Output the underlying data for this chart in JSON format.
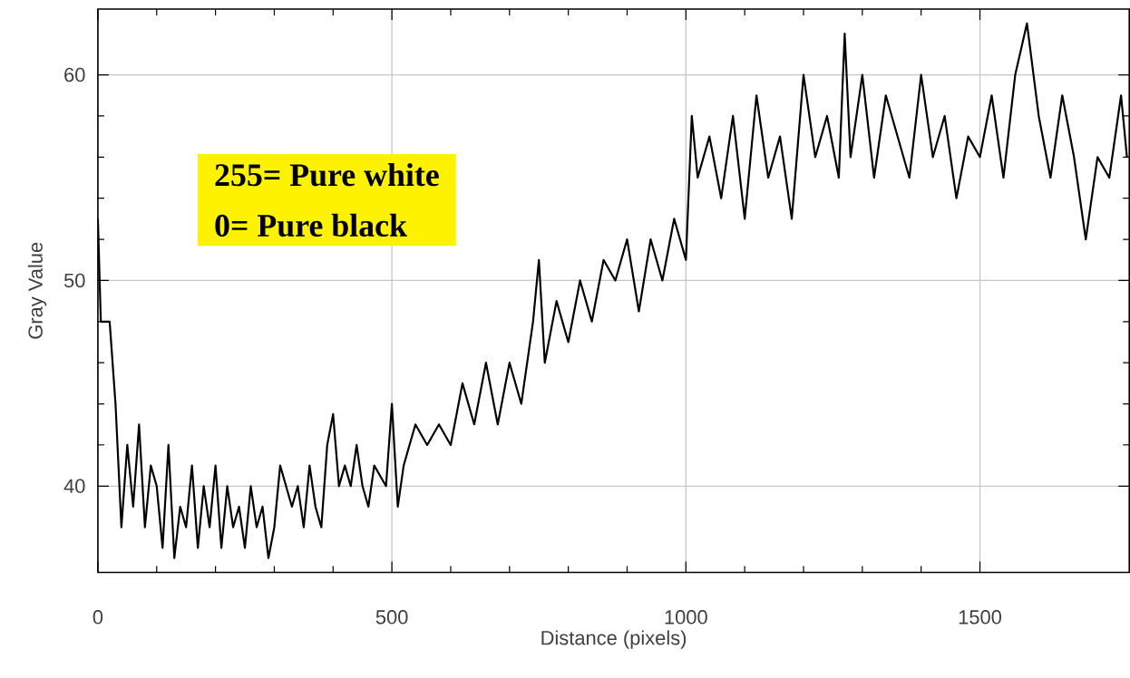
{
  "chart_data": {
    "type": "line",
    "xlabel": "Distance (pixels)",
    "ylabel": "Gray Value",
    "annotations": [
      "255= Pure white",
      "0= Pure black"
    ],
    "x": [
      0,
      5,
      20,
      30,
      40,
      50,
      60,
      70,
      80,
      90,
      100,
      110,
      120,
      130,
      140,
      150,
      160,
      170,
      180,
      190,
      200,
      210,
      220,
      230,
      240,
      250,
      260,
      270,
      280,
      290,
      300,
      310,
      320,
      330,
      340,
      350,
      360,
      370,
      380,
      390,
      400,
      410,
      420,
      430,
      440,
      450,
      460,
      470,
      490,
      500,
      510,
      520,
      540,
      560,
      580,
      600,
      620,
      640,
      660,
      680,
      700,
      720,
      740,
      750,
      760,
      780,
      800,
      820,
      840,
      860,
      880,
      900,
      920,
      940,
      960,
      980,
      1000,
      1010,
      1020,
      1040,
      1060,
      1080,
      1100,
      1120,
      1140,
      1160,
      1180,
      1200,
      1220,
      1240,
      1260,
      1270,
      1280,
      1300,
      1320,
      1340,
      1360,
      1380,
      1400,
      1420,
      1440,
      1460,
      1480,
      1500,
      1520,
      1540,
      1560,
      1580,
      1600,
      1620,
      1640,
      1660,
      1680,
      1700,
      1720,
      1740,
      1750
    ],
    "series": [
      {
        "color": "#000000",
        "values": [
          53,
          48,
          48,
          44,
          38,
          42,
          39,
          43,
          38,
          41,
          40,
          37,
          42,
          36.5,
          39,
          38,
          41,
          37,
          40,
          38,
          41,
          37,
          40,
          38,
          39,
          37,
          40,
          38,
          39,
          36.5,
          38,
          41,
          40,
          39,
          40,
          38,
          41,
          39,
          38,
          42,
          43.5,
          40,
          41,
          40,
          42,
          40,
          39,
          41,
          40,
          44,
          39,
          41,
          43,
          42,
          43,
          42,
          45,
          43,
          46,
          43,
          46,
          44,
          48,
          51,
          46,
          49,
          47,
          50,
          48,
          51,
          50,
          52,
          48.5,
          52,
          50,
          53,
          51,
          58,
          55,
          57,
          54,
          58,
          53,
          59,
          55,
          57,
          53,
          60,
          56,
          58,
          55,
          62,
          56,
          60,
          55,
          59,
          57,
          55,
          60,
          56,
          58,
          54,
          57,
          56,
          59,
          55,
          60,
          62.5,
          58,
          55,
          59,
          56,
          52,
          56,
          55,
          59,
          56
        ]
      }
    ],
    "xlim": [
      0,
      1754
    ],
    "ylim": [
      35.8,
      63.2
    ],
    "xticks": [
      0,
      500,
      1000,
      1500
    ],
    "yticks": [
      40,
      50,
      60
    ],
    "grid": true,
    "marker": "none",
    "line_style": "solid"
  }
}
